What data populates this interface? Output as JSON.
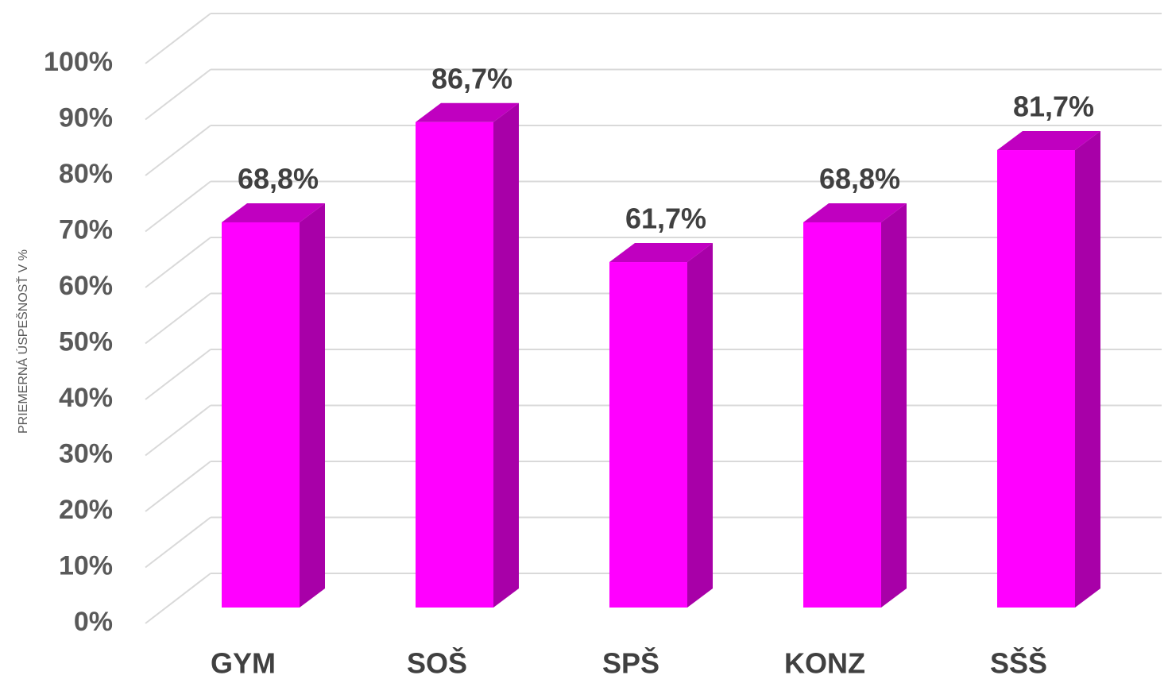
{
  "chart_data": {
    "type": "bar",
    "y_label": "PRIEMERNÁ ÚSPEŠNOSŤ V %",
    "categories": [
      "GYM",
      "SOŠ",
      "SPŠ",
      "KONZ",
      "SŠŠ"
    ],
    "values": [
      68.8,
      86.7,
      61.7,
      68.8,
      81.7
    ],
    "value_labels": [
      "68,8%",
      "86,7%",
      "61,7%",
      "68,8%",
      "81,7%"
    ],
    "color": "#ff00ff",
    "side_color": "#a800a8",
    "top_color": "#c000c0",
    "ylim": [
      0,
      100
    ],
    "yticks": [
      {
        "value": 0,
        "label": "0%"
      },
      {
        "value": 10,
        "label": "10%"
      },
      {
        "value": 20,
        "label": "20%"
      },
      {
        "value": 30,
        "label": "30%"
      },
      {
        "value": 40,
        "label": "40%"
      },
      {
        "value": 50,
        "label": "50%"
      },
      {
        "value": 60,
        "label": "60%"
      },
      {
        "value": 70,
        "label": "70%"
      },
      {
        "value": 80,
        "label": "80%"
      },
      {
        "value": 90,
        "label": "90%"
      },
      {
        "value": 100,
        "label": "100%"
      }
    ],
    "grid": true
  }
}
